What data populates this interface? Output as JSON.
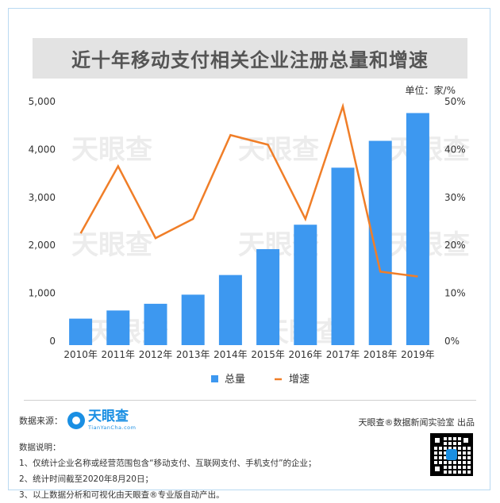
{
  "title": "近十年移动支付相关企业注册总量和增速",
  "unit_label": "单位：家/%",
  "watermark": "天眼查",
  "watermark_en": "TianYanCha.com",
  "chart_data": {
    "type": "bar",
    "categories": [
      "2010年",
      "2011年",
      "2012年",
      "2013年",
      "2014年",
      "2015年",
      "2016年",
      "2017年",
      "2018年",
      "2019年"
    ],
    "series": [
      {
        "name": "总量",
        "type": "bar",
        "axis": "left",
        "color": "#3d98f0",
        "values": [
          470,
          640,
          780,
          970,
          1380,
          1920,
          2430,
          3620,
          4180,
          4760
        ]
      },
      {
        "name": "增速",
        "type": "line",
        "axis": "right",
        "color": "#f07e28",
        "values": [
          22.5,
          36.5,
          21.5,
          25.5,
          43,
          41,
          25.5,
          49,
          14.5,
          13.5
        ]
      }
    ],
    "y_left": {
      "min": 0,
      "max": 5000,
      "ticks": [
        "0",
        "1,000",
        "2,000",
        "3,000",
        "4,000",
        "5,000"
      ],
      "tick_values": [
        0,
        1000,
        2000,
        3000,
        4000,
        5000
      ]
    },
    "y_right": {
      "min": 0,
      "max": 50,
      "ticks": [
        "0%",
        "10%",
        "20%",
        "30%",
        "40%",
        "50%"
      ],
      "tick_values": [
        0,
        10,
        20,
        30,
        40,
        50
      ]
    },
    "legend_position": "bottom-center",
    "grid": false
  },
  "footer": {
    "source_label": "数据来源：",
    "logo_cn": "天眼查",
    "logo_en": "TianYanCha.com",
    "producer": "天眼查®数据新闻实验室 出品",
    "notes_title": "数据说明：",
    "notes": [
      "1、仅统计企业名称或经营范围包含“移动支付、互联网支付、手机支付”的企业；",
      "2、统计时间截至2020年8月20日；",
      "3、以上数据分析和可视化由天眼查®专业版自动产出。"
    ]
  }
}
